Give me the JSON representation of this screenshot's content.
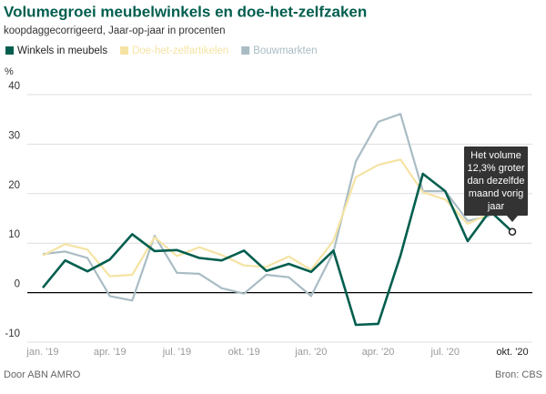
{
  "chart_data": {
    "type": "line",
    "title": "Volumegroei meubelwinkels en doe-het-zelfzaken",
    "subtitle": "koopdaggecorrigeerd, Jaar-op-jaar in procenten",
    "y_label": "%",
    "categories": [
      "jan. '19",
      null,
      null,
      "apr. '19",
      null,
      null,
      "jul. '19",
      null,
      null,
      "okt. '19",
      null,
      null,
      "jan. '20",
      null,
      null,
      "apr. '20",
      null,
      null,
      "jul. '20",
      null,
      null,
      "okt. '20"
    ],
    "series": [
      {
        "name": "Winkels in meubels",
        "color": "#005e4e",
        "values": [
          1,
          6.5,
          4.3,
          6.7,
          11.8,
          8.4,
          8.6,
          7,
          6.5,
          8.5,
          4.4,
          5.8,
          4.2,
          8.5,
          -6.5,
          -6.3,
          7.5,
          24,
          20.5,
          10.4,
          16.5,
          12.3
        ]
      },
      {
        "name": "Doe-het-zelfartikelen",
        "color": "#f5e3a3",
        "values": [
          7.5,
          9.8,
          8.7,
          3.3,
          3.6,
          11.2,
          7.4,
          9.2,
          7.6,
          5.5,
          5.2,
          7.3,
          4.6,
          10.5,
          23.3,
          25.8,
          26.9,
          20.3,
          18.8,
          13.9,
          16,
          null
        ]
      },
      {
        "name": "Bouwmarkten",
        "color": "#a9bcc4",
        "values": [
          7.8,
          8.3,
          7,
          -0.7,
          -1.6,
          11.5,
          4,
          3.8,
          0.9,
          -0.2,
          3.6,
          3.1,
          -0.7,
          8.2,
          26.5,
          34.5,
          36.1,
          20.5,
          20.5,
          14.5,
          15.5,
          null
        ]
      }
    ],
    "ylim": [
      -10,
      40
    ],
    "yticks": [
      -10,
      0,
      10,
      20,
      30,
      40
    ],
    "grid": true,
    "annotation": [
      "Het volume",
      "12,3% groter",
      "dan dezelfde",
      "maand vorig",
      "jaar"
    ],
    "source_left": "Door ABN AMRO",
    "source_right": "Bron: CBS"
  }
}
